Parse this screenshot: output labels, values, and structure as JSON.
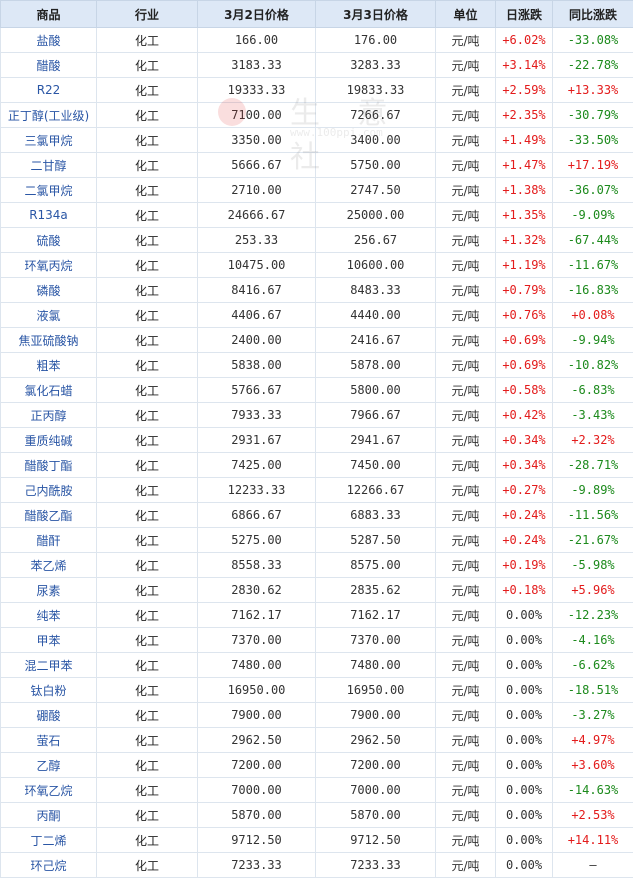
{
  "headers": {
    "product": "商品",
    "industry": "行业",
    "price_mar2": "3月2日价格",
    "price_mar3": "3月3日价格",
    "unit": "单位",
    "daily_change": "日涨跌",
    "yoy_change": "同比涨跌"
  },
  "watermark": {
    "text": "生 意 社",
    "sub": "www.100ppi.com"
  },
  "colors": {
    "up": "#e31b1b",
    "down": "#1c8a1c",
    "name": "#2a56a5",
    "header_bg": "#dde8f6"
  },
  "rows": [
    {
      "name": "盐酸",
      "industry": "化工",
      "p1": "166.00",
      "p2": "176.00",
      "unit": "元/吨",
      "daily": "+6.02%",
      "yoy": "-33.08%"
    },
    {
      "name": "醋酸",
      "industry": "化工",
      "p1": "3183.33",
      "p2": "3283.33",
      "unit": "元/吨",
      "daily": "+3.14%",
      "yoy": "-22.78%"
    },
    {
      "name": "R22",
      "industry": "化工",
      "p1": "19333.33",
      "p2": "19833.33",
      "unit": "元/吨",
      "daily": "+2.59%",
      "yoy": "+13.33%"
    },
    {
      "name": "正丁醇(工业级)",
      "industry": "化工",
      "p1": "7100.00",
      "p2": "7266.67",
      "unit": "元/吨",
      "daily": "+2.35%",
      "yoy": "-30.79%"
    },
    {
      "name": "三氯甲烷",
      "industry": "化工",
      "p1": "3350.00",
      "p2": "3400.00",
      "unit": "元/吨",
      "daily": "+1.49%",
      "yoy": "-33.50%"
    },
    {
      "name": "二甘醇",
      "industry": "化工",
      "p1": "5666.67",
      "p2": "5750.00",
      "unit": "元/吨",
      "daily": "+1.47%",
      "yoy": "+17.19%"
    },
    {
      "name": "二氯甲烷",
      "industry": "化工",
      "p1": "2710.00",
      "p2": "2747.50",
      "unit": "元/吨",
      "daily": "+1.38%",
      "yoy": "-36.07%"
    },
    {
      "name": "R134a",
      "industry": "化工",
      "p1": "24666.67",
      "p2": "25000.00",
      "unit": "元/吨",
      "daily": "+1.35%",
      "yoy": "-9.09%"
    },
    {
      "name": "硫酸",
      "industry": "化工",
      "p1": "253.33",
      "p2": "256.67",
      "unit": "元/吨",
      "daily": "+1.32%",
      "yoy": "-67.44%"
    },
    {
      "name": "环氧丙烷",
      "industry": "化工",
      "p1": "10475.00",
      "p2": "10600.00",
      "unit": "元/吨",
      "daily": "+1.19%",
      "yoy": "-11.67%"
    },
    {
      "name": "磷酸",
      "industry": "化工",
      "p1": "8416.67",
      "p2": "8483.33",
      "unit": "元/吨",
      "daily": "+0.79%",
      "yoy": "-16.83%"
    },
    {
      "name": "液氯",
      "industry": "化工",
      "p1": "4406.67",
      "p2": "4440.00",
      "unit": "元/吨",
      "daily": "+0.76%",
      "yoy": "+0.08%"
    },
    {
      "name": "焦亚硫酸钠",
      "industry": "化工",
      "p1": "2400.00",
      "p2": "2416.67",
      "unit": "元/吨",
      "daily": "+0.69%",
      "yoy": "-9.94%"
    },
    {
      "name": "粗苯",
      "industry": "化工",
      "p1": "5838.00",
      "p2": "5878.00",
      "unit": "元/吨",
      "daily": "+0.69%",
      "yoy": "-10.82%"
    },
    {
      "name": "氯化石蜡",
      "industry": "化工",
      "p1": "5766.67",
      "p2": "5800.00",
      "unit": "元/吨",
      "daily": "+0.58%",
      "yoy": "-6.83%"
    },
    {
      "name": "正丙醇",
      "industry": "化工",
      "p1": "7933.33",
      "p2": "7966.67",
      "unit": "元/吨",
      "daily": "+0.42%",
      "yoy": "-3.43%"
    },
    {
      "name": "重质纯碱",
      "industry": "化工",
      "p1": "2931.67",
      "p2": "2941.67",
      "unit": "元/吨",
      "daily": "+0.34%",
      "yoy": "+2.32%"
    },
    {
      "name": "醋酸丁酯",
      "industry": "化工",
      "p1": "7425.00",
      "p2": "7450.00",
      "unit": "元/吨",
      "daily": "+0.34%",
      "yoy": "-28.71%"
    },
    {
      "name": "己内酰胺",
      "industry": "化工",
      "p1": "12233.33",
      "p2": "12266.67",
      "unit": "元/吨",
      "daily": "+0.27%",
      "yoy": "-9.89%"
    },
    {
      "name": "醋酸乙酯",
      "industry": "化工",
      "p1": "6866.67",
      "p2": "6883.33",
      "unit": "元/吨",
      "daily": "+0.24%",
      "yoy": "-11.56%"
    },
    {
      "name": "醋酐",
      "industry": "化工",
      "p1": "5275.00",
      "p2": "5287.50",
      "unit": "元/吨",
      "daily": "+0.24%",
      "yoy": "-21.67%"
    },
    {
      "name": "苯乙烯",
      "industry": "化工",
      "p1": "8558.33",
      "p2": "8575.00",
      "unit": "元/吨",
      "daily": "+0.19%",
      "yoy": "-5.98%"
    },
    {
      "name": "尿素",
      "industry": "化工",
      "p1": "2830.62",
      "p2": "2835.62",
      "unit": "元/吨",
      "daily": "+0.18%",
      "yoy": "+5.96%"
    },
    {
      "name": "纯苯",
      "industry": "化工",
      "p1": "7162.17",
      "p2": "7162.17",
      "unit": "元/吨",
      "daily": "0.00%",
      "yoy": "-12.23%"
    },
    {
      "name": "甲苯",
      "industry": "化工",
      "p1": "7370.00",
      "p2": "7370.00",
      "unit": "元/吨",
      "daily": "0.00%",
      "yoy": "-4.16%"
    },
    {
      "name": "混二甲苯",
      "industry": "化工",
      "p1": "7480.00",
      "p2": "7480.00",
      "unit": "元/吨",
      "daily": "0.00%",
      "yoy": "-6.62%"
    },
    {
      "name": "钛白粉",
      "industry": "化工",
      "p1": "16950.00",
      "p2": "16950.00",
      "unit": "元/吨",
      "daily": "0.00%",
      "yoy": "-18.51%"
    },
    {
      "name": "硼酸",
      "industry": "化工",
      "p1": "7900.00",
      "p2": "7900.00",
      "unit": "元/吨",
      "daily": "0.00%",
      "yoy": "-3.27%"
    },
    {
      "name": "萤石",
      "industry": "化工",
      "p1": "2962.50",
      "p2": "2962.50",
      "unit": "元/吨",
      "daily": "0.00%",
      "yoy": "+4.97%"
    },
    {
      "name": "乙醇",
      "industry": "化工",
      "p1": "7200.00",
      "p2": "7200.00",
      "unit": "元/吨",
      "daily": "0.00%",
      "yoy": "+3.60%"
    },
    {
      "name": "环氧乙烷",
      "industry": "化工",
      "p1": "7000.00",
      "p2": "7000.00",
      "unit": "元/吨",
      "daily": "0.00%",
      "yoy": "-14.63%"
    },
    {
      "name": "丙酮",
      "industry": "化工",
      "p1": "5870.00",
      "p2": "5870.00",
      "unit": "元/吨",
      "daily": "0.00%",
      "yoy": "+2.53%"
    },
    {
      "name": "丁二烯",
      "industry": "化工",
      "p1": "9712.50",
      "p2": "9712.50",
      "unit": "元/吨",
      "daily": "0.00%",
      "yoy": "+14.11%"
    },
    {
      "name": "环己烷",
      "industry": "化工",
      "p1": "7233.33",
      "p2": "7233.33",
      "unit": "元/吨",
      "daily": "0.00%",
      "yoy": "—"
    }
  ]
}
